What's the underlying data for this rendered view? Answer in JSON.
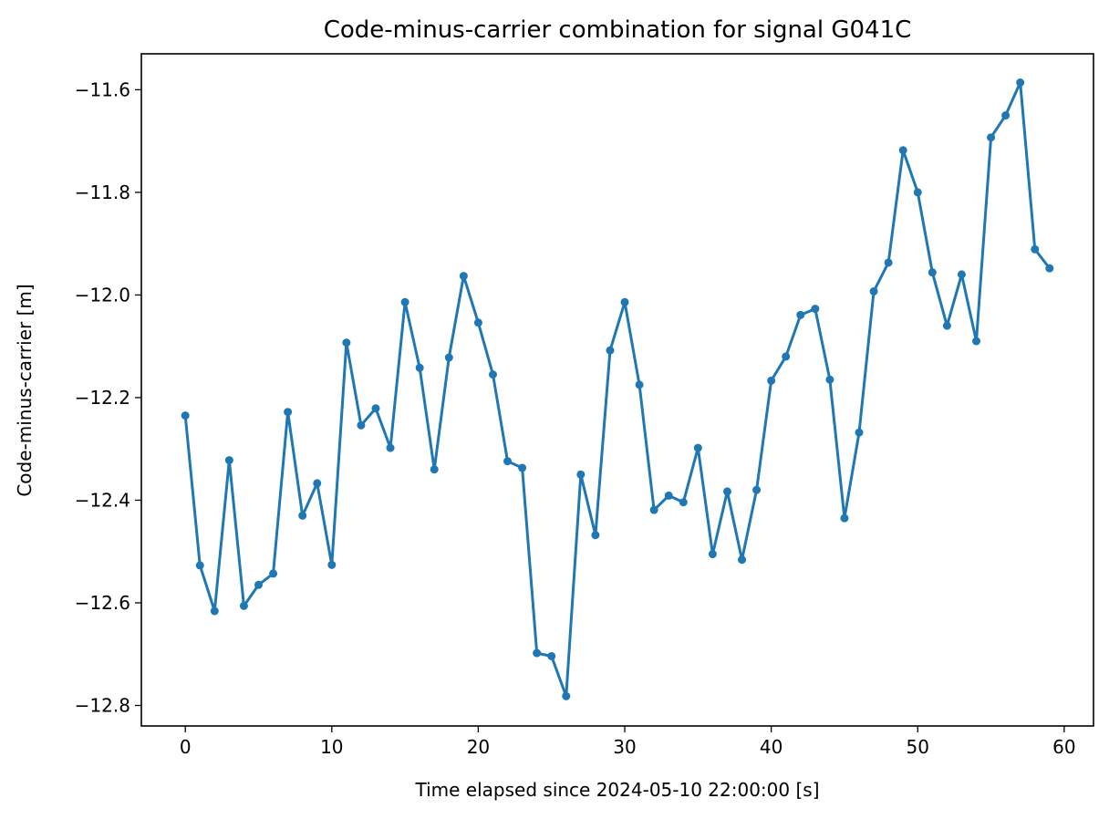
{
  "chart_data": {
    "type": "line",
    "title": "Code-minus-carrier combination for signal G041C",
    "xlabel": "Time elapsed since 2024-05-10 22:00:00 [s]",
    "ylabel": "Code-minus-carrier [m]",
    "xlim": [
      -3,
      62
    ],
    "ylim": [
      -12.84,
      -11.53
    ],
    "xticks": [
      0,
      10,
      20,
      30,
      40,
      50,
      60
    ],
    "xtick_labels": [
      "0",
      "10",
      "20",
      "30",
      "40",
      "50",
      "60"
    ],
    "yticks": [
      -12.8,
      -12.6,
      -12.4,
      -12.2,
      -12.0,
      -11.8,
      -11.6
    ],
    "ytick_labels": [
      "−12.8",
      "−12.6",
      "−12.4",
      "−12.2",
      "−12.0",
      "−11.8",
      "−11.6"
    ],
    "grid": false,
    "color": "#1f77b4",
    "marker": "circle",
    "x": [
      0,
      1,
      2,
      3,
      4,
      5,
      6,
      7,
      8,
      9,
      10,
      11,
      12,
      13,
      14,
      15,
      16,
      17,
      18,
      19,
      20,
      21,
      22,
      23,
      24,
      25,
      26,
      27,
      28,
      29,
      30,
      31,
      32,
      33,
      34,
      35,
      36,
      37,
      38,
      39,
      40,
      41,
      42,
      43,
      44,
      45,
      46,
      47,
      48,
      49,
      50,
      51,
      52,
      53,
      54,
      55,
      56,
      57,
      58,
      59
    ],
    "y": [
      -12.235,
      -12.527,
      -12.616,
      -12.322,
      -12.606,
      -12.565,
      -12.543,
      -12.228,
      -12.43,
      -12.367,
      -12.526,
      -12.093,
      -12.254,
      -12.221,
      -12.298,
      -12.014,
      -12.142,
      -12.34,
      -12.122,
      -11.963,
      -12.054,
      -12.155,
      -12.324,
      -12.337,
      -12.698,
      -12.704,
      -12.782,
      -12.35,
      -12.468,
      -12.108,
      -12.014,
      -12.175,
      -12.419,
      -12.391,
      -12.404,
      -12.298,
      -12.505,
      -12.383,
      -12.516,
      -12.38,
      -12.167,
      -12.12,
      -12.039,
      -12.027,
      -12.165,
      -12.435,
      -12.268,
      -11.993,
      -11.937,
      -11.718,
      -11.8,
      -11.956,
      -12.06,
      -11.96,
      -12.09,
      -11.693,
      -11.65,
      -11.586,
      -11.911,
      -11.948
    ]
  }
}
